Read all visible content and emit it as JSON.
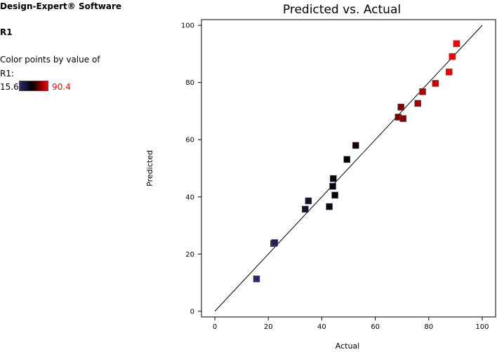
{
  "sidebar": {
    "app_title": "Design-Expert® Software",
    "response_name": "R1",
    "color_label_1": "Color points by value of",
    "color_label_2": "R1:",
    "scale_min": "15.6",
    "scale_max": "90.4",
    "scale_colors": {
      "low": "#2a2a6a",
      "mid": "#000000",
      "high": "#ff0000"
    }
  },
  "chart_data": {
    "type": "scatter",
    "title": "Predicted vs. Actual",
    "xlabel": "Actual",
    "ylabel": "Predicted",
    "xlim": [
      -5,
      105
    ],
    "ylim": [
      -2,
      102
    ],
    "xticks": [
      0,
      20,
      40,
      60,
      80,
      100
    ],
    "yticks": [
      0,
      20,
      40,
      60,
      80,
      100
    ],
    "reference_line": {
      "from": [
        0,
        0
      ],
      "to": [
        100,
        100
      ]
    },
    "color_range": [
      15.6,
      90.4
    ],
    "points": [
      {
        "x": 15.6,
        "y": 11.3
      },
      {
        "x": 22.0,
        "y": 23.7
      },
      {
        "x": 22.4,
        "y": 24.0
      },
      {
        "x": 33.8,
        "y": 35.7
      },
      {
        "x": 35.0,
        "y": 38.6
      },
      {
        "x": 42.8,
        "y": 36.6
      },
      {
        "x": 44.1,
        "y": 43.7
      },
      {
        "x": 44.3,
        "y": 46.4
      },
      {
        "x": 44.9,
        "y": 40.6
      },
      {
        "x": 49.4,
        "y": 53.1
      },
      {
        "x": 52.7,
        "y": 58.0
      },
      {
        "x": 68.6,
        "y": 67.9
      },
      {
        "x": 69.6,
        "y": 71.4
      },
      {
        "x": 70.4,
        "y": 67.4
      },
      {
        "x": 75.9,
        "y": 72.7
      },
      {
        "x": 77.7,
        "y": 76.8
      },
      {
        "x": 82.5,
        "y": 79.7
      },
      {
        "x": 87.6,
        "y": 83.7
      },
      {
        "x": 88.8,
        "y": 89.1
      },
      {
        "x": 90.4,
        "y": 93.6
      }
    ]
  }
}
